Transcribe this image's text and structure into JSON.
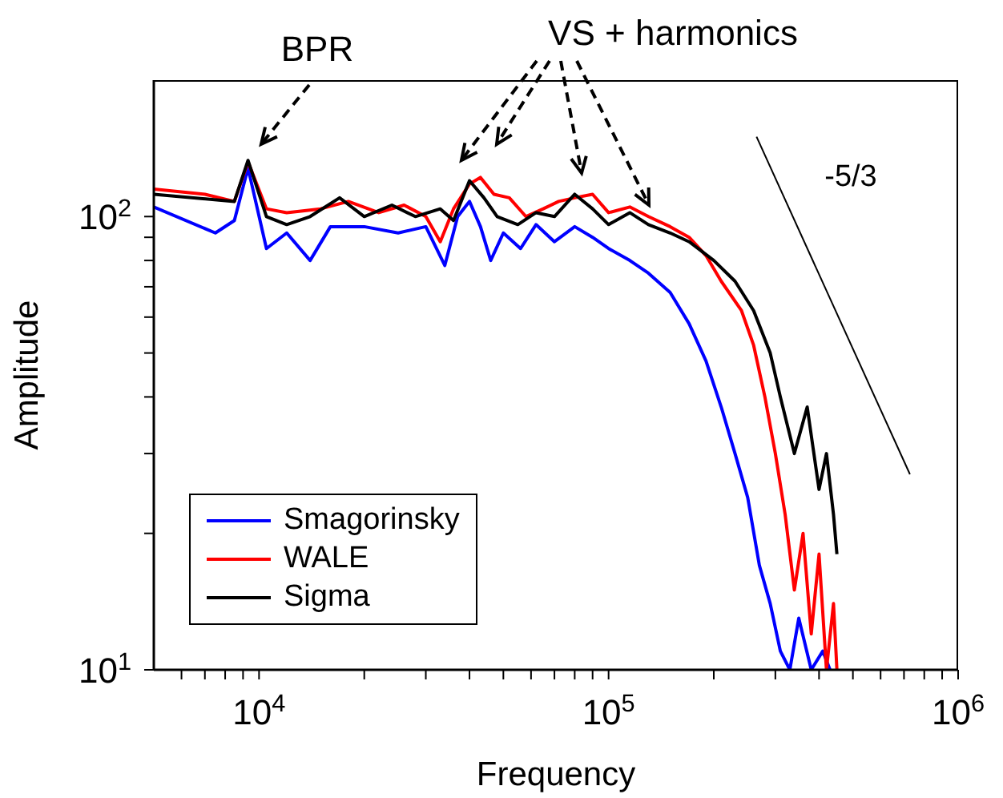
{
  "chart_data": {
    "type": "line",
    "xlabel": "Frequency",
    "ylabel": "Amplitude",
    "log": "xy",
    "legend": "bottom left",
    "marker": "none",
    "line_style": "solid",
    "xlim": [
      5000,
      1000000
    ],
    "ylim": [
      10,
      200
    ],
    "xticks": [
      {
        "value": 6000,
        "label": null
      },
      {
        "value": 7000,
        "label": null
      },
      {
        "value": 8000,
        "label": null
      },
      {
        "value": 9000,
        "label": null
      },
      {
        "value": 10000,
        "label": "10$^{4}$"
      },
      {
        "value": 20000,
        "label": null
      },
      {
        "value": 30000,
        "label": null
      },
      {
        "value": 40000,
        "label": null
      },
      {
        "value": 50000,
        "label": null
      },
      {
        "value": 60000,
        "label": null
      },
      {
        "value": 70000,
        "label": null
      },
      {
        "value": 80000,
        "label": null
      },
      {
        "value": 90000,
        "label": null
      },
      {
        "value": 100000,
        "label": "10$^{5}$"
      },
      {
        "value": 200000,
        "label": null
      },
      {
        "value": 300000,
        "label": null
      },
      {
        "value": 400000,
        "label": null
      },
      {
        "value": 500000,
        "label": null
      },
      {
        "value": 600000,
        "label": null
      },
      {
        "value": 700000,
        "label": null
      },
      {
        "value": 800000,
        "label": null
      },
      {
        "value": 900000,
        "label": null
      },
      {
        "value": 1000000,
        "label": "10$^{6}$"
      }
    ],
    "yticks": [
      {
        "value": 10,
        "label": "10$^{1}$"
      },
      {
        "value": 20,
        "label": null
      },
      {
        "value": 30,
        "label": null
      },
      {
        "value": 40,
        "label": null
      },
      {
        "value": 50,
        "label": null
      },
      {
        "value": 60,
        "label": null
      },
      {
        "value": 70,
        "label": null
      },
      {
        "value": 80,
        "label": null
      },
      {
        "value": 90,
        "label": null
      },
      {
        "value": 100,
        "label": "10$^{2}$"
      }
    ],
    "annotations": [
      "BPR",
      "VS + harmonics",
      "-5/3"
    ],
    "series": [
      {
        "name": "Smagorinsky",
        "color": "#0000ff",
        "x": [
          5000,
          7500,
          8500,
          9300,
          10500,
          12000,
          14000,
          16000,
          20000,
          25000,
          30000,
          34000,
          37000,
          40000,
          43000,
          46000,
          50000,
          56000,
          62000,
          70000,
          80000,
          90000,
          100000,
          115000,
          130000,
          150000,
          170000,
          190000,
          210000,
          230000,
          250000,
          270000,
          290000,
          310000,
          330000,
          350000,
          380000,
          410000,
          430000
        ],
        "values": [
          105,
          92,
          98,
          128,
          85,
          92,
          80,
          95,
          95,
          92,
          95,
          78,
          100,
          108,
          95,
          80,
          92,
          85,
          96,
          88,
          95,
          90,
          85,
          80,
          75,
          68,
          58,
          48,
          38,
          30,
          24,
          17,
          14,
          11,
          10,
          13,
          10,
          11,
          10
        ]
      },
      {
        "name": "WALE",
        "color": "#ff0000",
        "x": [
          5000,
          7000,
          8500,
          9300,
          10500,
          12000,
          15000,
          18000,
          22000,
          26000,
          30000,
          33000,
          36000,
          40000,
          43000,
          47000,
          52000,
          58000,
          65000,
          72000,
          80000,
          90000,
          100000,
          115000,
          130000,
          150000,
          170000,
          190000,
          210000,
          240000,
          260000,
          280000,
          300000,
          320000,
          340000,
          360000,
          380000,
          400000,
          420000,
          440000,
          450000
        ],
        "values": [
          115,
          112,
          108,
          132,
          104,
          102,
          104,
          108,
          102,
          106,
          100,
          88,
          104,
          118,
          122,
          112,
          110,
          100,
          104,
          108,
          110,
          112,
          102,
          105,
          100,
          95,
          90,
          82,
          72,
          62,
          52,
          40,
          30,
          22,
          15,
          20,
          12,
          18,
          10,
          14,
          10
        ]
      },
      {
        "name": "Sigma",
        "color": "#000000",
        "x": [
          5000,
          8500,
          9300,
          10500,
          12000,
          14000,
          17000,
          20000,
          24000,
          28000,
          33000,
          36000,
          40000,
          44000,
          48000,
          55000,
          62000,
          70000,
          80000,
          90000,
          100000,
          115000,
          130000,
          150000,
          170000,
          200000,
          230000,
          260000,
          290000,
          310000,
          340000,
          370000,
          400000,
          420000,
          440000,
          450000
        ],
        "values": [
          112,
          108,
          133,
          100,
          96,
          100,
          110,
          100,
          106,
          100,
          104,
          98,
          120,
          110,
          100,
          96,
          102,
          100,
          112,
          104,
          96,
          102,
          96,
          92,
          88,
          80,
          72,
          62,
          50,
          40,
          30,
          38,
          25,
          30,
          22,
          18
        ]
      },
      {
        "type": "line",
        "color": "#000000",
        "x": [
          265000,
          728000
        ],
        "values": [
          150,
          27
        ]
      }
    ]
  }
}
